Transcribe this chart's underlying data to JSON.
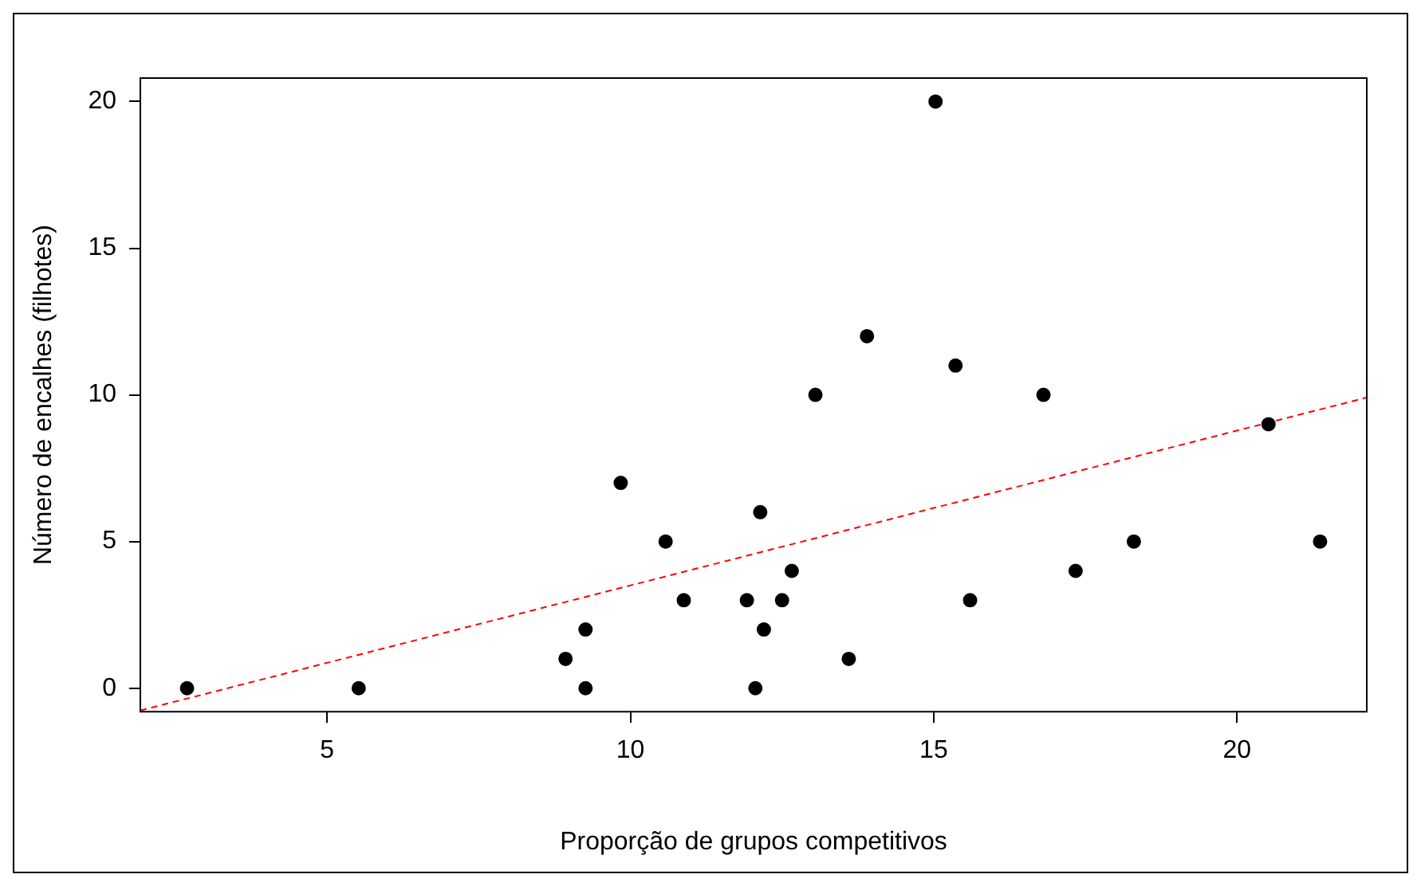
{
  "chart_data": {
    "type": "scatter",
    "xlabel": "Proporção de grupos competitivos",
    "ylabel": "Número de encalhes (filhotes)",
    "xlim": [
      1.92,
      22.14
    ],
    "ylim": [
      -0.8,
      20.8
    ],
    "xticks": [
      5,
      10,
      15,
      20
    ],
    "yticks": [
      0,
      5,
      10,
      15,
      20
    ],
    "grid": false,
    "series": [
      {
        "color": "#000000",
        "marker": "circle",
        "x": [
          2.69,
          5.52,
          8.93,
          9.26,
          9.26,
          9.84,
          10.58,
          10.88,
          11.92,
          12.06,
          12.14,
          12.2,
          12.5,
          12.66,
          13.05,
          13.6,
          13.9,
          15.03,
          15.36,
          15.6,
          16.81,
          17.34,
          18.3,
          20.52,
          21.37
        ],
        "values": [
          0,
          0,
          1,
          2,
          0,
          7,
          5,
          3,
          3,
          0,
          6,
          2,
          3,
          4,
          10,
          1,
          12,
          20,
          11,
          3,
          10,
          4,
          5,
          9,
          5
        ]
      },
      {
        "type": "line",
        "color": "#ff0000",
        "line_style": "dashed",
        "marker": "none",
        "x": [
          1.92,
          22.14
        ],
        "values": [
          -0.76,
          9.91
        ]
      }
    ]
  }
}
